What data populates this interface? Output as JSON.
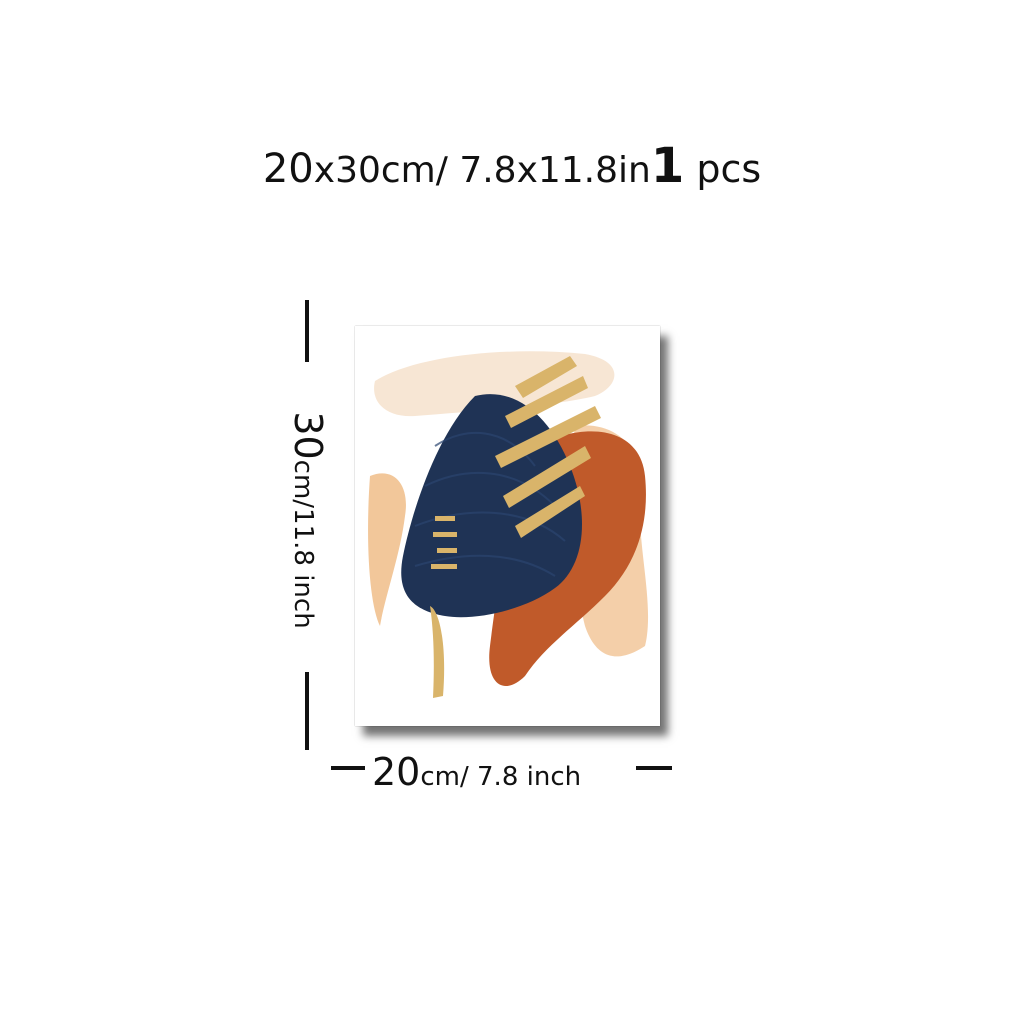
{
  "title": {
    "size_cm_a": "20",
    "size_cm_b": "x30cm/ 7.8x11.8in",
    "qty_num": "1",
    "qty_unit": " pcs"
  },
  "height_label": {
    "number": "30",
    "unit": "cm/11.8 inch"
  },
  "width_label": {
    "number": "20",
    "unit": "cm/ 7.8 inch"
  },
  "artwork": {
    "colors": {
      "navy": "#1f3355",
      "rust": "#c05a2a",
      "peach": "#f2c79a",
      "cream": "#f6e3cf",
      "gold": "#d9b46a"
    }
  }
}
